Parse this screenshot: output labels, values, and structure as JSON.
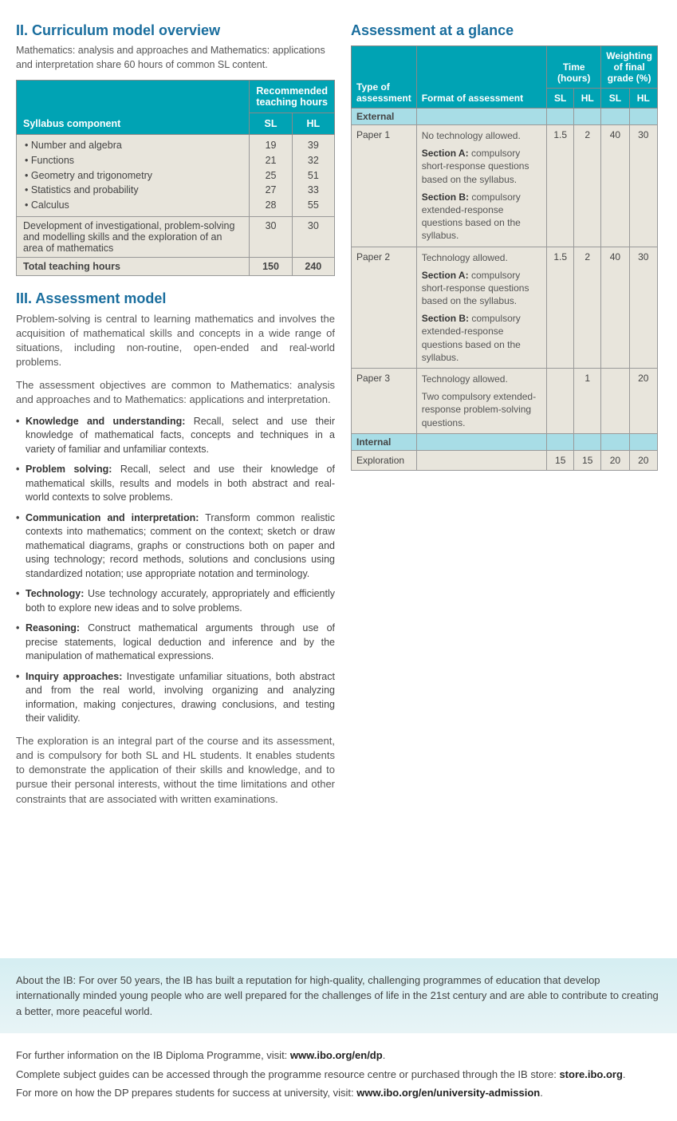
{
  "left": {
    "h_curriculum": "II. Curriculum model overview",
    "curriculum_intro": "Mathematics: analysis and approaches and Mathematics: applications and interpretation share 60 hours of common SL content.",
    "t1": {
      "h_component": "Syllabus component",
      "h_rec": "Recommended teaching hours",
      "h_sl": "SL",
      "h_hl": "HL",
      "topics": [
        {
          "name": "Number and algebra",
          "sl": "19",
          "hl": "39"
        },
        {
          "name": "Functions",
          "sl": "21",
          "hl": "32"
        },
        {
          "name": "Geometry and trigonometry",
          "sl": "25",
          "hl": "51"
        },
        {
          "name": "Statistics and probability",
          "sl": "27",
          "hl": "33"
        },
        {
          "name": "Calculus",
          "sl": "28",
          "hl": "55"
        }
      ],
      "dev_label": "Development of investigational, problem-solving and modelling skills and the exploration of an area of mathematics",
      "dev_sl": "30",
      "dev_hl": "30",
      "total_label": "Total teaching hours",
      "total_sl": "150",
      "total_hl": "240"
    },
    "h_assessment_model": "III. Assessment model",
    "p1": "Problem-solving is central to learning mathematics and involves the acquisition of mathematical skills and concepts in a wide range of situations, including non-routine, open-ended and real-world problems.",
    "p2": "The assessment objectives are common to Mathematics: analysis and approaches and to Mathematics: applications and interpretation.",
    "obj": [
      {
        "b": "Knowledge and understanding:",
        "t": " Recall, select and use their knowledge of mathematical facts, concepts and techniques in a variety of familiar and unfamiliar contexts."
      },
      {
        "b": "Problem solving:",
        "t": " Recall, select and use their knowledge of mathematical skills, results and models in both abstract and real-world contexts to solve problems."
      },
      {
        "b": "Communication and interpretation:",
        "t": " Transform common realistic contexts into mathematics; comment on the context; sketch or draw mathematical diagrams, graphs or constructions both on paper and using technology; record methods, solutions and conclusions using standardized notation; use appropriate notation and terminology."
      },
      {
        "b": "Technology:",
        "t": " Use technology accurately, appropriately and efficiently both to explore new ideas and to solve problems."
      },
      {
        "b": "Reasoning:",
        "t": " Construct mathematical arguments through use of precise statements, logical deduction and inference and by the manipulation of mathematical expressions."
      },
      {
        "b": "Inquiry approaches:",
        "t": " Investigate unfamiliar situations, both abstract and from the real world, involving organizing and analyzing information, making conjectures, drawing conclusions, and testing their validity."
      }
    ],
    "p3": "The exploration is an integral part of the course and its assessment, and is compulsory for both SL and HL students. It enables students to demonstrate the application of their skills and knowledge, and to pursue their personal interests, without the time limitations and other constraints that are associated with written examinations."
  },
  "right": {
    "h_glance": "Assessment at a glance",
    "t2": {
      "h_type": "Type of assessment",
      "h_format": "Format of assessment",
      "h_time": "Time (hours)",
      "h_weight": "Weighting of final grade (%)",
      "h_sl": "SL",
      "h_hl": "HL",
      "external": "External",
      "internal": "Internal",
      "rows": [
        {
          "type": "Paper 1",
          "fmt_lead": "No technology allowed.",
          "fmt_a_b": "Section A:",
          "fmt_a_t": " compulsory short-response questions based on the syllabus.",
          "fmt_b_b": "Section B:",
          "fmt_b_t": " compulsory extended-response questions based on the syllabus.",
          "tsl": "1.5",
          "thl": "2",
          "wsl": "40",
          "whl": "30"
        },
        {
          "type": "Paper 2",
          "fmt_lead": "Technology allowed.",
          "fmt_a_b": "Section A:",
          "fmt_a_t": " compulsory short-response questions based on the syllabus.",
          "fmt_b_b": "Section B:",
          "fmt_b_t": " compulsory extended-response questions based on the syllabus.",
          "tsl": "1.5",
          "thl": "2",
          "wsl": "40",
          "whl": "30"
        },
        {
          "type": "Paper 3",
          "fmt_lead": "Technology allowed.",
          "fmt_extra": "Two compulsory extended-response problem-solving questions.",
          "tsl": "",
          "thl": "1",
          "wsl": "",
          "whl": "20"
        }
      ],
      "exploration": {
        "type": "Exploration",
        "tsl": "15",
        "thl": "15",
        "wsl": "20",
        "whl": "20"
      }
    }
  },
  "footer": {
    "band": "About the IB: For over 50 years, the IB has built a reputation for high-quality, challenging programmes of education that develop internationally minded young people who are well prepared for the challenges of life in the 21st century and are able to contribute to creating a better, more peaceful world.",
    "l1a": "For further information on the IB Diploma Programme, visit: ",
    "l1b": "www.ibo.org/en/dp",
    "l2a": "Complete subject guides can be accessed through the programme resource centre or purchased through the IB store: ",
    "l2b": "store.ibo.org",
    "l3a": "For more on how the DP prepares students for success at university, visit: ",
    "l3b": "www.ibo.org/en/university-admission"
  }
}
